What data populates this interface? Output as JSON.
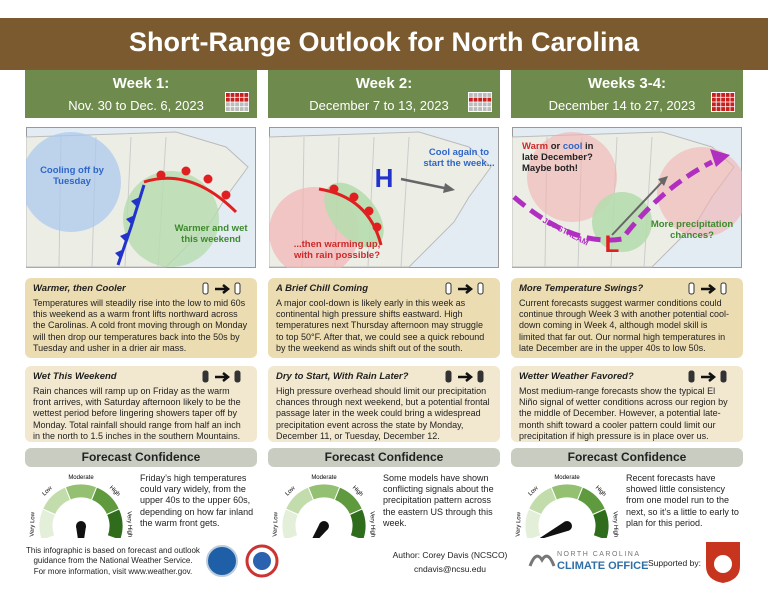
{
  "header": {
    "title": "Short-Range Outlook for North Carolina"
  },
  "gauge_labels": [
    "Very Low",
    "Low",
    "Moderate",
    "High",
    "Very High"
  ],
  "columns": [
    {
      "heading": "Week 1:",
      "dates": "Nov. 30 to Dec. 6, 2023",
      "map_labels": {
        "left": "Cooling off by Tuesday",
        "right": "Warmer and wet this weekend"
      },
      "sections": [
        {
          "title": "Warmer, then Cooler",
          "text": "Temperatures will steadily rise into the low to mid 60s this weekend as a warm front lifts northward across the Carolinas. A cold front moving through on Monday will then drop our temperatures back into the 50s by Tuesday and usher in a drier air mass."
        },
        {
          "title": "Wet This Weekend",
          "text": "Rain chances will ramp up on Friday as the warm front arrives, with Saturday afternoon likely to be the wettest period before lingering showers taper off by Monday. Total rainfall should range from half an inch in the north to 1.5 inches in the southern Mountains."
        }
      ],
      "confidence_title": "Forecast Confidence",
      "confidence_text": "Friday’s high temperatures could vary widely, from the upper 40s to the upper 60s, depending on how far inland the warm front gets."
    },
    {
      "heading": "Week 2:",
      "dates": "December 7 to 13, 2023",
      "map_labels": {
        "high": "H",
        "right": "Cool again to start the week...",
        "left": "...then warming up, with rain possible?"
      },
      "sections": [
        {
          "title": "A Brief Chill Coming",
          "text": "A major cool-down is likely early in this week as continental high pressure shifts eastward. High temperatures next Thursday afternoon may struggle to top 50°F. After that, we could see a quick rebound by the weekend as winds shift out of the south."
        },
        {
          "title": "Dry to Start, With Rain Later?",
          "text": "High pressure overhead should limit our precipitation chances through next weekend, but a potential frontal passage later in the week could bring a widespread precipitation event across the state by Monday, December 11, or Tuesday, December 12."
        }
      ],
      "confidence_title": "Forecast Confidence",
      "confidence_text": "Some models have shown conflicting signals about the precipitation pattern across the eastern US through this week."
    },
    {
      "heading": "Weeks 3-4:",
      "dates": "December 14 to 27, 2023",
      "map_labels": {
        "warm": "Warm",
        "or": "or",
        "cool": "cool",
        "rest": "in late December? Maybe both!",
        "jet": "JET STREAM",
        "low": "L",
        "right": "More precipitation chances?"
      },
      "sections": [
        {
          "title": "More Temperature Swings?",
          "text": "Current forecasts suggest warmer conditions could continue through Week 3 with another potential cool-down coming in Week 4, although model skill is limited that far out. Our normal high temperatures in late December are in the upper 40s to low 50s."
        },
        {
          "title": "Wetter Weather Favored?",
          "text": "Most medium-range forecasts show the typical El Niño signal of wetter conditions across our region by the middle of December. However, a potential late-month shift toward a cooler pattern could limit our precipitation if high pressure is in place over us."
        }
      ],
      "confidence_title": "Forecast Confidence",
      "confidence_text": "Recent forecasts have showed little consistency from one model run to the next, so it’s a little to early to plan for this period."
    }
  ],
  "footer": {
    "disclaimer": "This infographic is based on forecast and outlook guidance from the National Weather Service.",
    "more_info": "For more information, visit www.weather.gov.",
    "author": "Author: Corey Davis (NCSCO)",
    "email": "cndavis@ncsu.edu",
    "office_top": "NORTH CAROLINA",
    "office_bottom": "CLIMATE OFFICE",
    "supported_by": "Supported by:"
  }
}
